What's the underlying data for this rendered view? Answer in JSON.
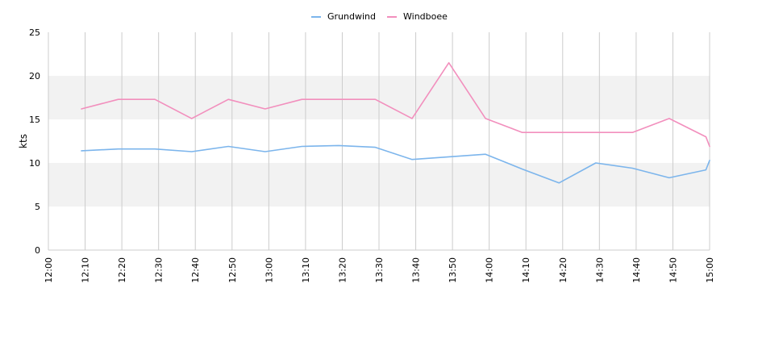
{
  "chart_data": {
    "type": "line",
    "xlabel": "",
    "ylabel": "kts",
    "ylim": [
      0,
      25
    ],
    "y_ticks": [
      0,
      5,
      10,
      15,
      20,
      25
    ],
    "x_ticks": [
      "12:00",
      "12:10",
      "12:20",
      "12:30",
      "12:40",
      "12:50",
      "13:00",
      "13:10",
      "13:20",
      "13:30",
      "13:40",
      "13:50",
      "14:00",
      "14:10",
      "14:20",
      "14:30",
      "14:40",
      "14:50",
      "15:00"
    ],
    "xlim": [
      "12:00",
      "15:00"
    ],
    "x_tick_rotation": "vertical",
    "vertical_grid": true,
    "horizontal_bands": [
      [
        5,
        10
      ],
      [
        15,
        20
      ]
    ],
    "legend_position": "top-center",
    "series": [
      {
        "name": "Grundwind",
        "color": "#7cb5ec",
        "points": [
          [
            "12:09",
            11.4
          ],
          [
            "12:19",
            11.6
          ],
          [
            "12:29",
            11.6
          ],
          [
            "12:39",
            11.3
          ],
          [
            "12:49",
            11.9
          ],
          [
            "12:59",
            11.3
          ],
          [
            "13:09",
            11.9
          ],
          [
            "13:19",
            12.0
          ],
          [
            "13:29",
            11.8
          ],
          [
            "13:39",
            10.4
          ],
          [
            "13:49",
            10.7
          ],
          [
            "13:59",
            11.0
          ],
          [
            "14:09",
            9.3
          ],
          [
            "14:19",
            7.7
          ],
          [
            "14:29",
            10.0
          ],
          [
            "14:39",
            9.4
          ],
          [
            "14:49",
            8.3
          ],
          [
            "14:59",
            9.2
          ],
          [
            "15:00",
            10.3
          ]
        ]
      },
      {
        "name": "Windboee",
        "color": "#f28fbd",
        "points": [
          [
            "12:09",
            16.2
          ],
          [
            "12:19",
            17.3
          ],
          [
            "12:29",
            17.3
          ],
          [
            "12:39",
            15.1
          ],
          [
            "12:49",
            17.3
          ],
          [
            "12:59",
            16.2
          ],
          [
            "13:09",
            17.3
          ],
          [
            "13:19",
            17.3
          ],
          [
            "13:29",
            17.3
          ],
          [
            "13:39",
            15.1
          ],
          [
            "13:49",
            21.5
          ],
          [
            "13:59",
            15.1
          ],
          [
            "14:09",
            13.5
          ],
          [
            "14:19",
            13.5
          ],
          [
            "14:29",
            13.5
          ],
          [
            "14:39",
            13.5
          ],
          [
            "14:49",
            15.1
          ],
          [
            "14:59",
            13.0
          ],
          [
            "15:00",
            11.9
          ]
        ]
      }
    ]
  }
}
